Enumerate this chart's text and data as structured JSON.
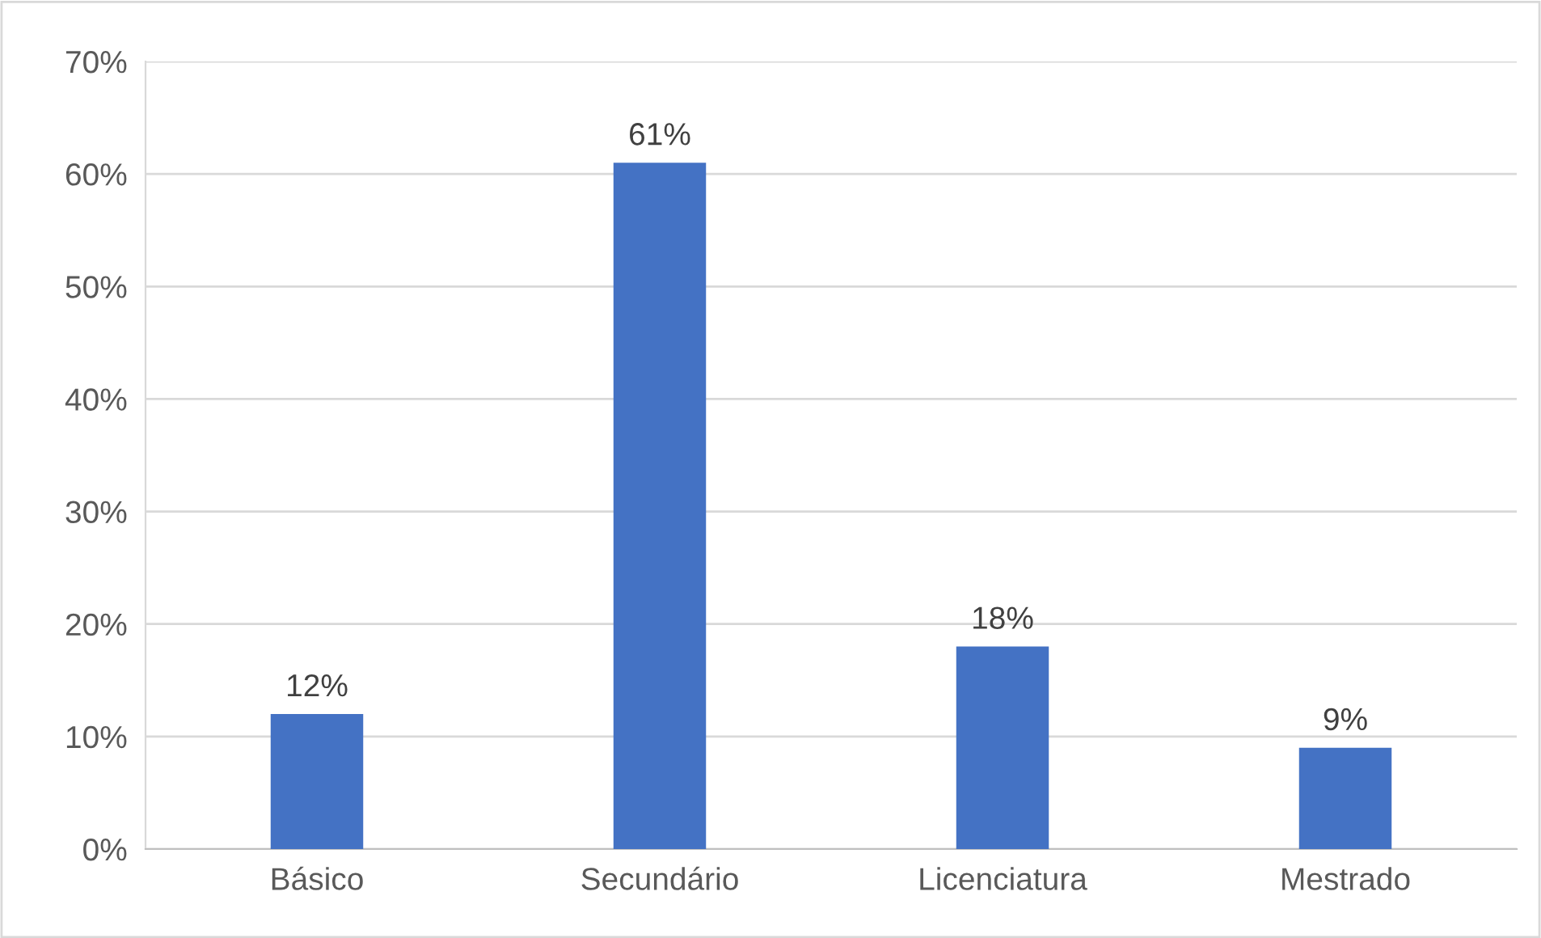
{
  "chart_data": {
    "type": "bar",
    "categories": [
      "Básico",
      "Secundário",
      "Licenciatura",
      "Mestrado"
    ],
    "values": [
      12,
      61,
      18,
      9
    ],
    "value_labels": [
      "12%",
      "61%",
      "18%",
      "9%"
    ],
    "color": "#4472c4",
    "ylim": [
      0,
      70
    ],
    "yticks": [
      {
        "value": 0,
        "label": "0%"
      },
      {
        "value": 10,
        "label": "10%"
      },
      {
        "value": 20,
        "label": "20%"
      },
      {
        "value": 30,
        "label": "30%"
      },
      {
        "value": 40,
        "label": "40%"
      },
      {
        "value": 50,
        "label": "50%"
      },
      {
        "value": 60,
        "label": "60%"
      },
      {
        "value": 70,
        "label": "70%"
      }
    ],
    "grid": "y",
    "legend": false
  }
}
